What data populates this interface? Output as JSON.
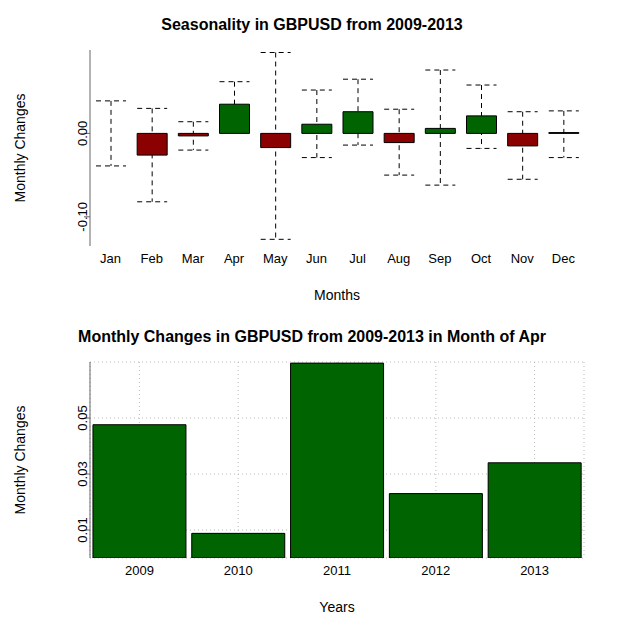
{
  "chart_data": [
    {
      "type": "bar",
      "title": "Seasonality in GBPUSD from 2009-2013",
      "x_label": "Months",
      "y_label": "Monthly Changes",
      "categories": [
        "Jan",
        "Feb",
        "Mar",
        "Apr",
        "May",
        "Jun",
        "Jul",
        "Aug",
        "Sep",
        "Oct",
        "Nov",
        "Dec"
      ],
      "values": [
        0,
        -0.026,
        -0.003,
        0.035,
        -0.017,
        0.011,
        0.026,
        -0.011,
        0.006,
        0.021,
        -0.015,
        0.001
      ],
      "low": [
        -0.039,
        -0.082,
        -0.02,
        0.009,
        -0.127,
        -0.029,
        -0.014,
        -0.05,
        -0.062,
        -0.018,
        -0.055,
        -0.029
      ],
      "high": [
        0.039,
        0.03,
        0.014,
        0.062,
        0.097,
        0.052,
        0.065,
        0.029,
        0.076,
        0.058,
        0.026,
        0.027
      ],
      "colors": [
        "#006400",
        "#8b0000",
        "#8b0000",
        "#006400",
        "#8b0000",
        "#006400",
        "#006400",
        "#8b0000",
        "#006400",
        "#006400",
        "#8b0000",
        "#006400"
      ],
      "ylim": [
        -0.135,
        0.1
      ],
      "yticks": [
        {
          "value": -0.1,
          "label": "-0.10"
        },
        {
          "value": 0,
          "label": "0.00"
        }
      ],
      "grid": false
    },
    {
      "type": "bar",
      "title": "Monthly Changes in GBPUSD from 2009-2013 in Month of Apr",
      "x_label": "Years",
      "y_label": "Monthly Changes",
      "categories": [
        "2009",
        "2010",
        "2011",
        "2012",
        "2013"
      ],
      "values": [
        0.0476,
        0.0088,
        0.0696,
        0.023,
        0.034
      ],
      "color": "#006400",
      "ylim": [
        0,
        0.07
      ],
      "yticks": [
        0.01,
        0.03,
        0.05
      ],
      "grid": true
    }
  ]
}
